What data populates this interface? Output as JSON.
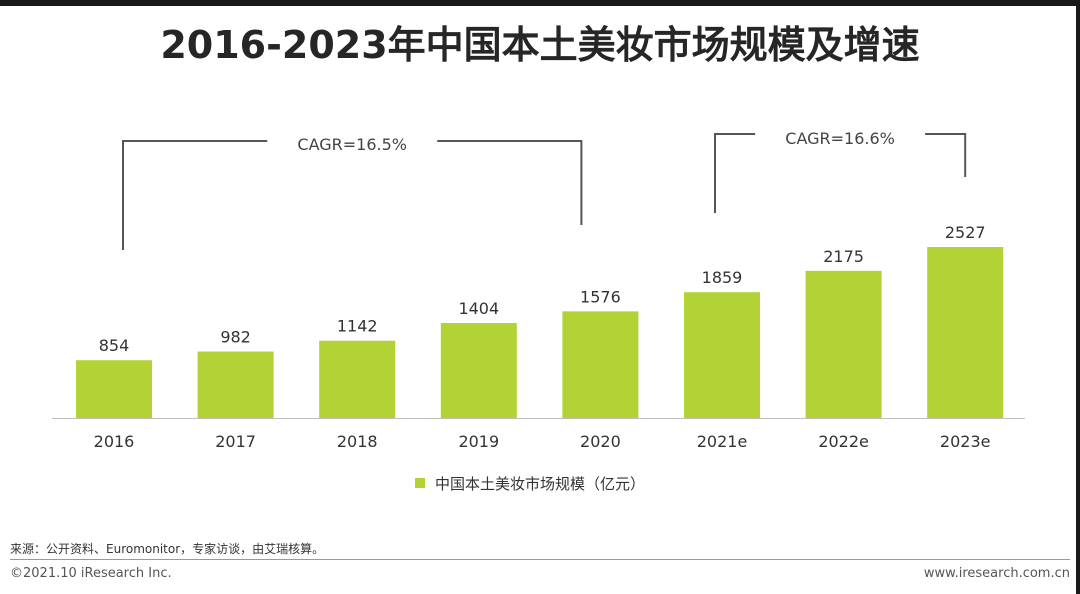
{
  "title": "2016-2023年中国本土美妆市场规模及增速",
  "chart_data": {
    "type": "bar",
    "categories": [
      "2016",
      "2017",
      "2018",
      "2019",
      "2020",
      "2021e",
      "2022e",
      "2023e"
    ],
    "series": [
      {
        "name": "中国本土美妆市场规模（亿元）",
        "values": [
          854,
          982,
          1142,
          1404,
          1576,
          1859,
          2175,
          2527
        ]
      }
    ],
    "ylim": [
      0,
      2527
    ],
    "annotations": [
      {
        "text": "CAGR=16.5%",
        "from": "2016",
        "to": "2020"
      },
      {
        "text": "CAGR=16.6%",
        "from": "2021e",
        "to": "2023e"
      }
    ],
    "color": "#b2d235"
  },
  "legend": {
    "label": "中国本土美妆市场规模（亿元）"
  },
  "footer": {
    "source": "来源：公开资料、Euromonitor，专家访谈，由艾瑞核算。",
    "copyright": "©2021.10 iResearch Inc.",
    "website": "www.iresearch.com.cn"
  }
}
